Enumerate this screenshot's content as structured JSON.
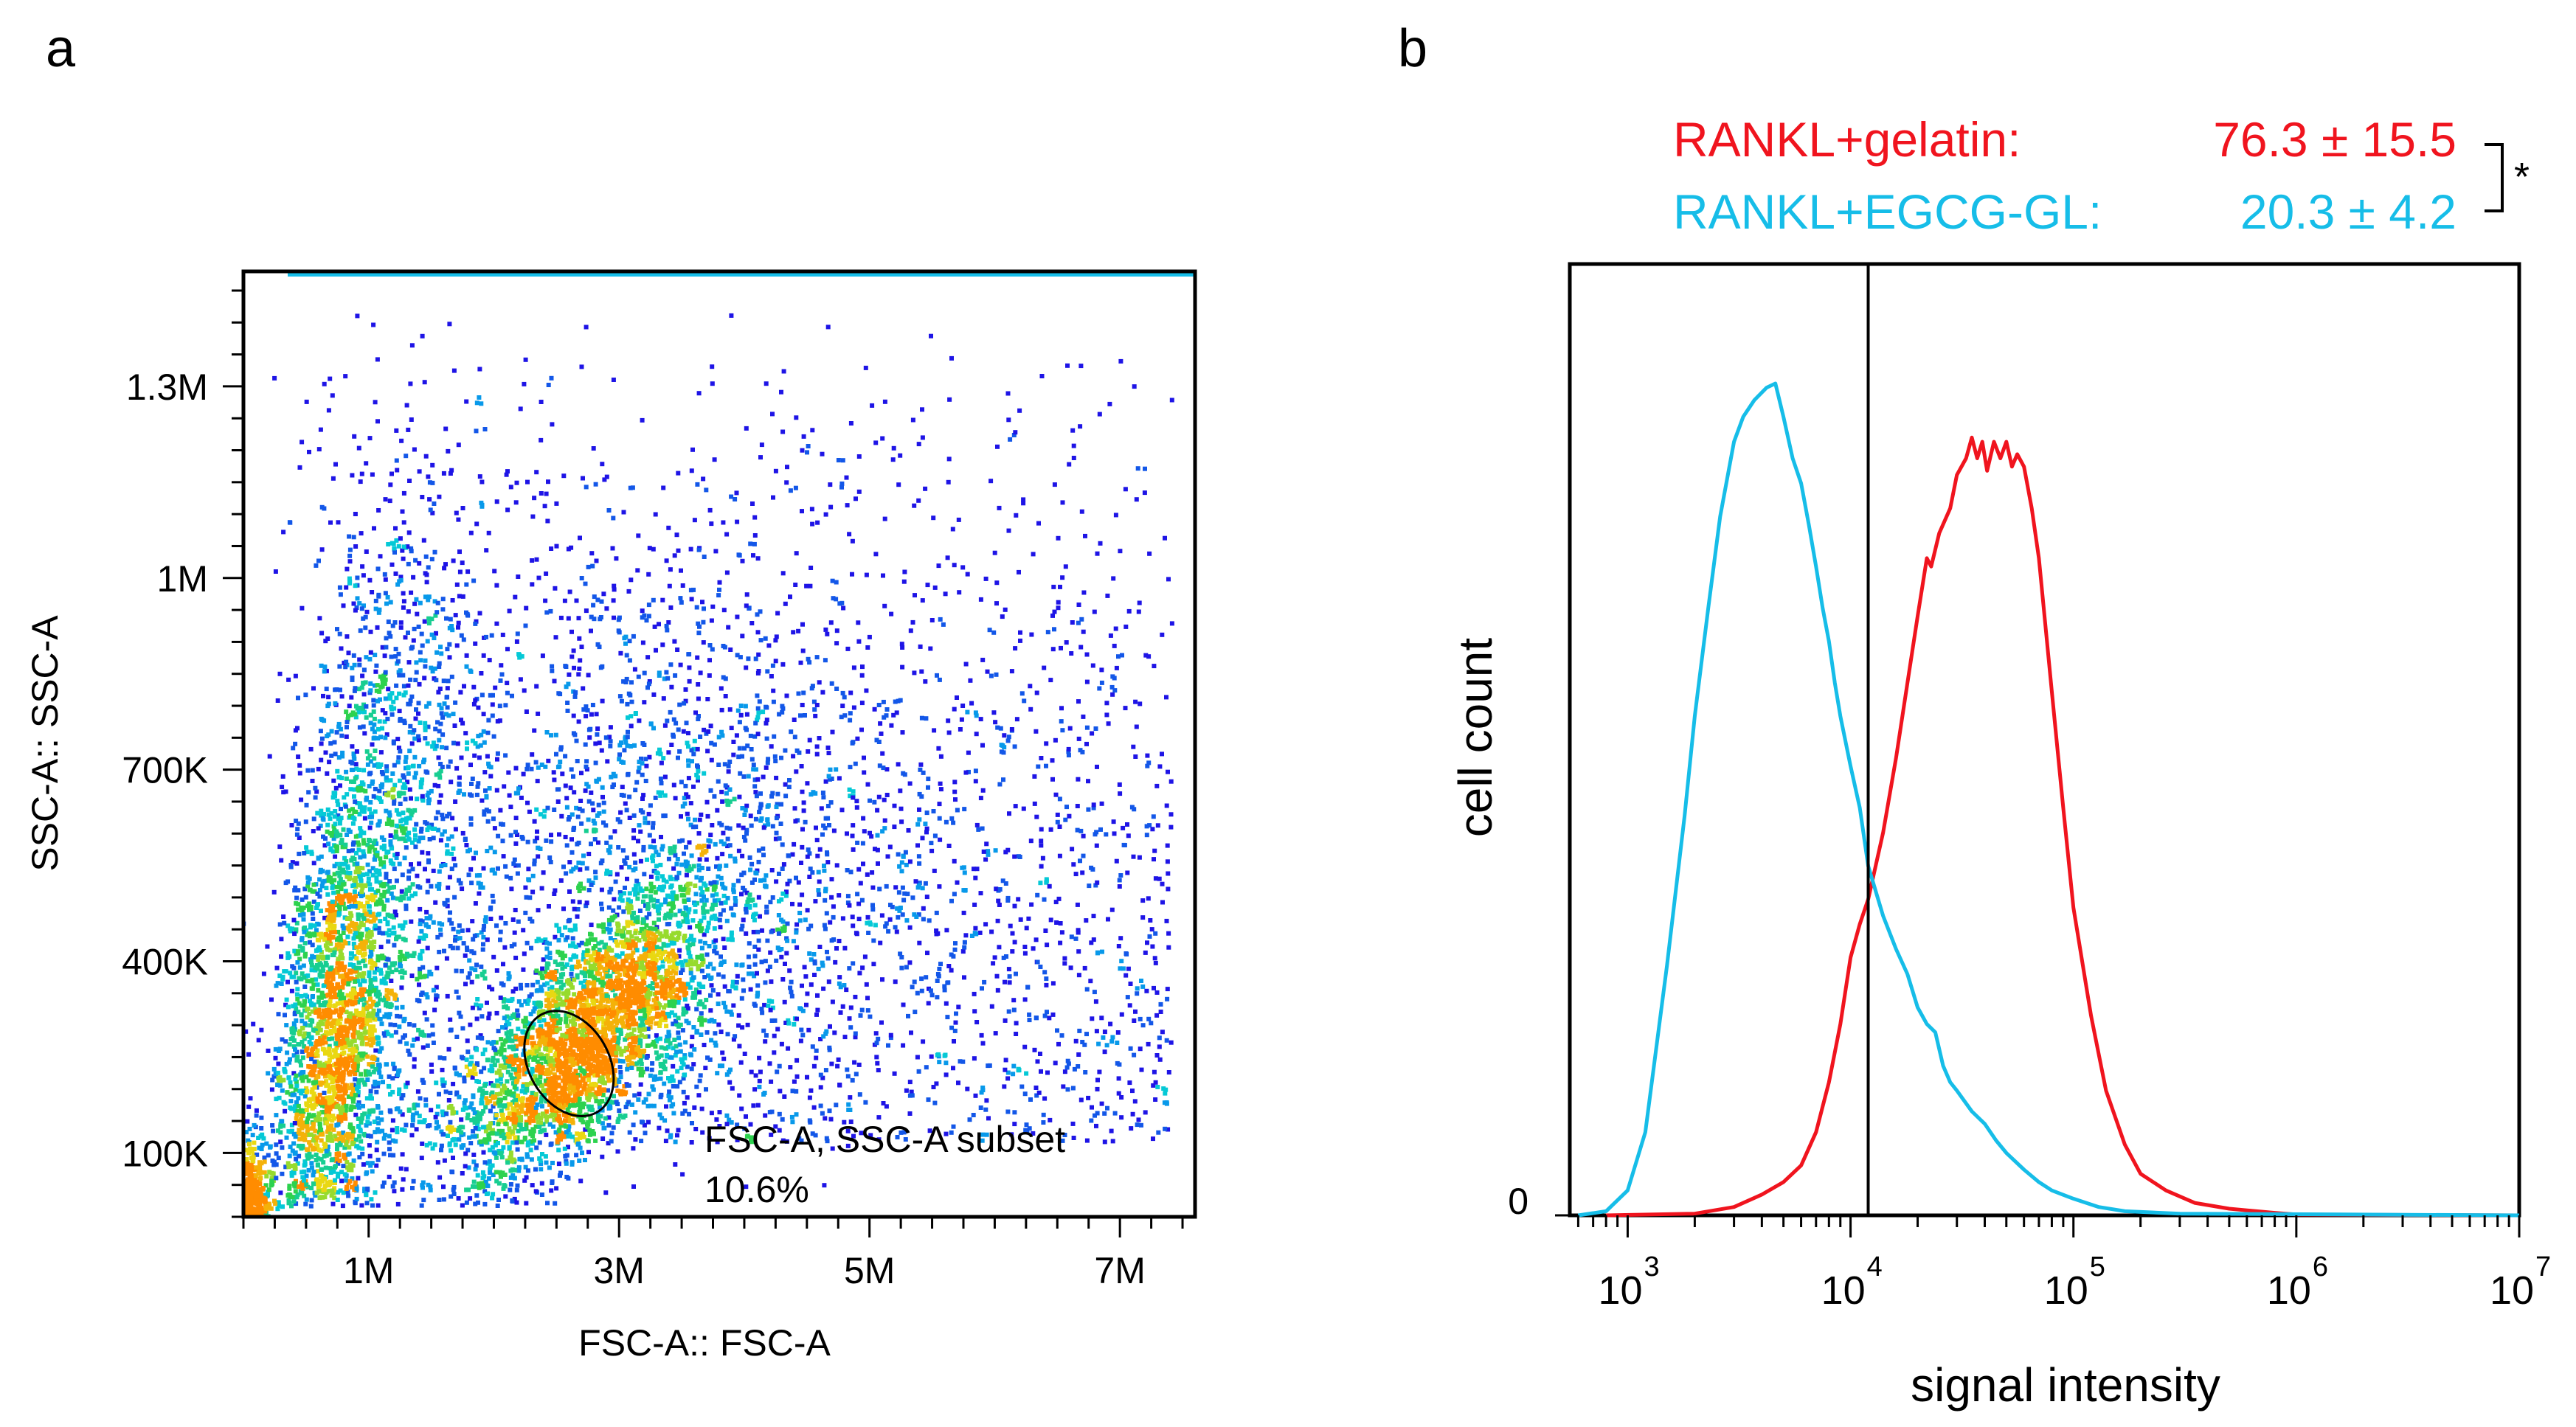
{
  "colors": {
    "background": "#ffffff",
    "axis": "#000000",
    "gelatin": "#f0141e",
    "egcg_gl": "#16bde8",
    "density_low": "#1e14e6",
    "density_high": "#ff8c00"
  },
  "chart_data": [
    {
      "type": "scatter",
      "panel_label": "a",
      "title": "",
      "xlabel": "FSC-A:: FSC-A",
      "ylabel": "SSC-A:: SSC-A",
      "xlim": [
        0,
        7600000
      ],
      "ylim": [
        0,
        1480000
      ],
      "x_ticks": [
        {
          "value": 1000000,
          "label": "1M"
        },
        {
          "value": 3000000,
          "label": "3M"
        },
        {
          "value": 5000000,
          "label": "5M"
        },
        {
          "value": 7000000,
          "label": "7M"
        }
      ],
      "y_ticks": [
        {
          "value": 100000,
          "label": "100K"
        },
        {
          "value": 400000,
          "label": "400K"
        },
        {
          "value": 700000,
          "label": "700K"
        },
        {
          "value": 1000000,
          "label": "1M"
        },
        {
          "value": 1300000,
          "label": "1.3M"
        }
      ],
      "density_clusters": [
        {
          "name": "low-FSC population",
          "x_center": 700000,
          "y_center": 230000,
          "density": "high"
        },
        {
          "name": "gated population",
          "x_center": 2600000,
          "y_center": 240000,
          "density": "high"
        },
        {
          "name": "diffuse events",
          "x_center": 3500000,
          "y_center": 600000,
          "density": "low"
        }
      ],
      "gate": {
        "name": "FSC-A, SSC-A subset",
        "percent": "10.6%",
        "x_center": 2600000,
        "y_center": 240000,
        "x_radius": 320000,
        "y_radius": 88000
      }
    },
    {
      "type": "line",
      "panel_label": "b",
      "title": "",
      "xlabel": "signal intensity",
      "ylabel": "cell count",
      "x_scale": "log",
      "xlim": [
        550,
        10000000
      ],
      "ylim": [
        0,
        100
      ],
      "y_tick_labels": [
        "0"
      ],
      "x_decades": [
        {
          "base": "10",
          "exp": "3",
          "value": 1000
        },
        {
          "base": "10",
          "exp": "4",
          "value": 10000
        },
        {
          "base": "10",
          "exp": "5",
          "value": 100000
        },
        {
          "base": "10",
          "exp": "6",
          "value": 1000000
        },
        {
          "base": "10",
          "exp": "7",
          "value": 10000000
        }
      ],
      "threshold_line_x": 12000,
      "series": [
        {
          "name": "RANKL+gelatin",
          "color": "#f0141e",
          "points": [
            [
              800,
              0
            ],
            [
              2000,
              0.2
            ],
            [
              3000,
              1
            ],
            [
              4000,
              2.5
            ],
            [
              5000,
              4
            ],
            [
              6000,
              6
            ],
            [
              7000,
              10
            ],
            [
              8000,
              16
            ],
            [
              9000,
              23
            ],
            [
              10000,
              31
            ],
            [
              11000,
              35
            ],
            [
              12000,
              38
            ],
            [
              14000,
              46
            ],
            [
              16000,
              55
            ],
            [
              18000,
              64
            ],
            [
              20000,
              72
            ],
            [
              22000,
              79
            ],
            [
              23000,
              78
            ],
            [
              25000,
              82
            ],
            [
              28000,
              85
            ],
            [
              30000,
              89
            ],
            [
              33000,
              91
            ],
            [
              35000,
              93.5
            ],
            [
              37000,
              91
            ],
            [
              39000,
              93
            ],
            [
              41000,
              89.5
            ],
            [
              44000,
              93
            ],
            [
              47000,
              91
            ],
            [
              50000,
              93
            ],
            [
              53000,
              90
            ],
            [
              56000,
              91.5
            ],
            [
              60000,
              90
            ],
            [
              65000,
              85
            ],
            [
              70000,
              79
            ],
            [
              80000,
              63
            ],
            [
              90000,
              49
            ],
            [
              100000,
              37
            ],
            [
              120000,
              24
            ],
            [
              140000,
              15
            ],
            [
              170000,
              8.5
            ],
            [
              200000,
              5
            ],
            [
              260000,
              3
            ],
            [
              350000,
              1.5
            ],
            [
              500000,
              0.8
            ],
            [
              800000,
              0.3
            ],
            [
              1000000,
              0.1
            ],
            [
              10000000,
              0
            ]
          ]
        },
        {
          "name": "RANKL+EGCG-GL",
          "color": "#16bde8",
          "points": [
            [
              600,
              0
            ],
            [
              800,
              0.5
            ],
            [
              1000,
              3
            ],
            [
              1200,
              10
            ],
            [
              1500,
              30
            ],
            [
              1800,
              48
            ],
            [
              2000,
              60
            ],
            [
              2300,
              73
            ],
            [
              2600,
              84
            ],
            [
              3000,
              93
            ],
            [
              3300,
              96
            ],
            [
              3700,
              98
            ],
            [
              4200,
              99.5
            ],
            [
              4600,
              100
            ],
            [
              5000,
              96
            ],
            [
              5500,
              91
            ],
            [
              6000,
              88
            ],
            [
              6500,
              83
            ],
            [
              7000,
              78
            ],
            [
              7500,
              73
            ],
            [
              8000,
              69
            ],
            [
              8500,
              64
            ],
            [
              9000,
              60
            ],
            [
              10000,
              54
            ],
            [
              11000,
              49
            ],
            [
              12000,
              42
            ],
            [
              14000,
              36
            ],
            [
              16000,
              32
            ],
            [
              18000,
              29
            ],
            [
              20000,
              25
            ],
            [
              22000,
              23
            ],
            [
              24000,
              22
            ],
            [
              26000,
              18
            ],
            [
              28000,
              16
            ],
            [
              30000,
              15
            ],
            [
              35000,
              12.5
            ],
            [
              40000,
              11
            ],
            [
              45000,
              9
            ],
            [
              50000,
              7.5
            ],
            [
              60000,
              5.5
            ],
            [
              70000,
              4
            ],
            [
              80000,
              3
            ],
            [
              100000,
              2
            ],
            [
              130000,
              1
            ],
            [
              170000,
              0.5
            ],
            [
              300000,
              0.2
            ],
            [
              10000000,
              0
            ]
          ]
        }
      ],
      "legend": [
        {
          "label": "RANKL+gelatin:",
          "value": "76.3 ± 15.5",
          "color": "#f0141e"
        },
        {
          "label": "RANKL+EGCG-GL:",
          "value": "20.3 ± 4.2",
          "color": "#16bde8"
        }
      ],
      "significance": "*"
    }
  ]
}
